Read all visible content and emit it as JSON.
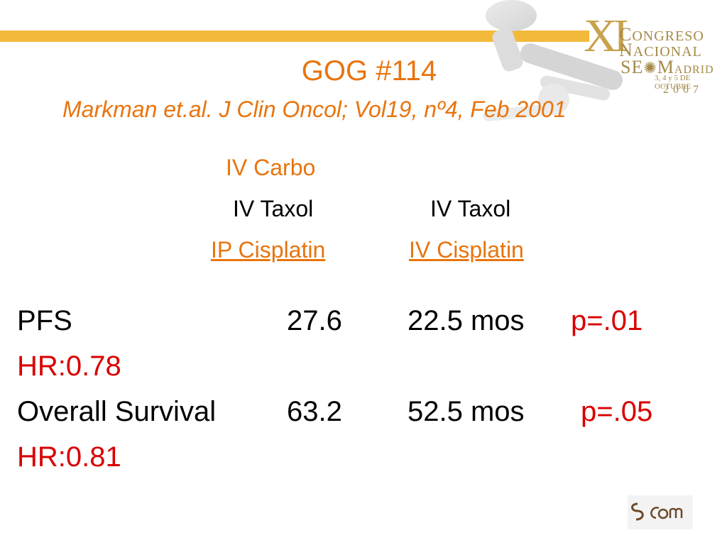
{
  "header": {
    "title": "GOG #114",
    "subtitle": "Markman et.al. J Clin Oncol; Vol19, nº4, Feb 2001"
  },
  "branding": {
    "line1": "ONGRESO",
    "line2": "ACIONAL",
    "line3": "SE",
    "line3b": "M",
    "line3c": "ADRID",
    "line4": "3, 4 y 5 DE OCTUBRE",
    "line5": "2007",
    "numeral": "XI"
  },
  "arms": {
    "arm1": [
      "IV Carbo",
      "IV Taxol",
      "IP Cisplatin"
    ],
    "arm2": [
      "IV Taxol",
      "IV Cisplatin"
    ]
  },
  "results": {
    "pfs": {
      "label": "PFS",
      "arm1": "27.6",
      "arm2": "22.5 mos",
      "p": "p=.01",
      "hr": "HR:0.78"
    },
    "os": {
      "label": "Overall Survival",
      "arm1": "63.2",
      "arm2": "52.5 mos",
      "p": "p=.05",
      "hr": "HR:0.81"
    }
  },
  "colors": {
    "accent": "#e8740e",
    "bar": "#f2b93b",
    "pvalue": "#d80000"
  }
}
